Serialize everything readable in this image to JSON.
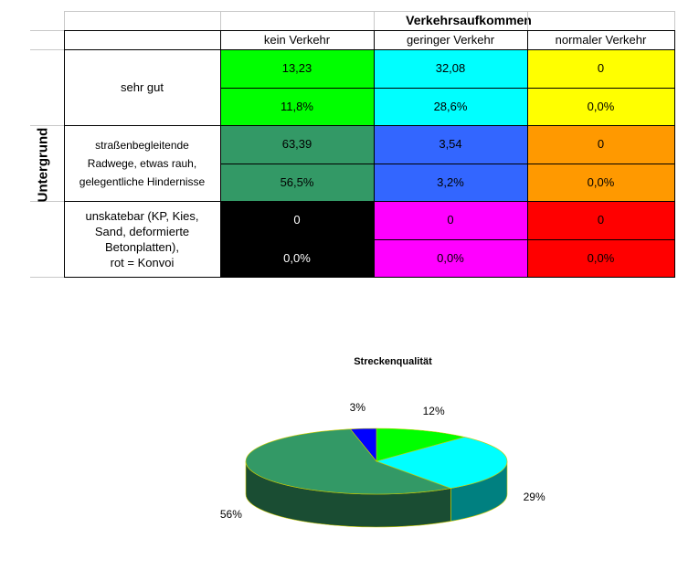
{
  "table": {
    "column_group_header": "Verkehrsaufkommen",
    "row_group_header": "Untergrund",
    "columns": [
      "kein Verkehr",
      "geringer Verkehr",
      "normaler Verkehr"
    ],
    "rows": [
      {
        "label": "sehr gut",
        "values": [
          "13,23",
          "32,08",
          "0"
        ],
        "percents": [
          "11,8%",
          "28,6%",
          "0,0%"
        ],
        "colors": [
          "#00ff00",
          "#00ffff",
          "#ffff00"
        ]
      },
      {
        "label": "straßenbegleitende Radwege, etwas rauh, gelegentliche Hindernisse",
        "label_lines": [
          "straßenbegleitende",
          "Radwege, etwas rauh,",
          "gelegentliche Hindernisse"
        ],
        "values": [
          "63,39",
          "3,54",
          "0"
        ],
        "percents": [
          "56,5%",
          "3,2%",
          "0,0%"
        ],
        "colors": [
          "#339966",
          "#3366ff",
          "#ff9900"
        ]
      },
      {
        "label": "unskatebar (KP, Kies, Sand, deformierte Betonplatten), rot = Konvoi",
        "label_lines": [
          "unskatebar (KP, Kies,",
          "Sand, deformierte",
          "Betonplatten),",
          "rot = Konvoi"
        ],
        "values": [
          "0",
          "0",
          "0"
        ],
        "percents": [
          "0,0%",
          "0,0%",
          "0,0%"
        ],
        "colors": [
          "#000000",
          "#ff00ff",
          "#ff0000"
        ]
      }
    ]
  },
  "chart_data": {
    "type": "pie",
    "title": "Streckenqualität",
    "three_d": true,
    "legend": "none",
    "slices": [
      {
        "label": "12%",
        "value": 11.8,
        "color": "#00ff00",
        "side": "#008000"
      },
      {
        "label": "29%",
        "value": 28.6,
        "color": "#00ffff",
        "side": "#008080"
      },
      {
        "label": "56%",
        "value": 56.5,
        "color": "#339966",
        "side": "#1a4d33"
      },
      {
        "label": "3%",
        "value": 3.2,
        "color": "#0000ff",
        "side": "#000080"
      }
    ]
  }
}
